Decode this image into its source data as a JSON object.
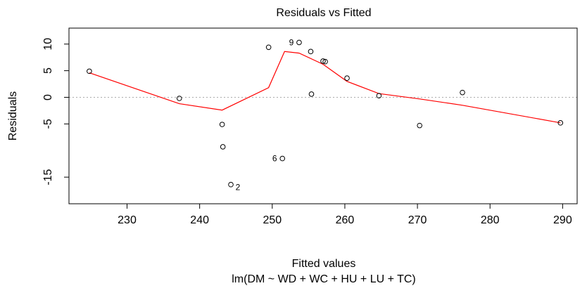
{
  "chart_data": {
    "type": "scatter",
    "title": "Residuals vs Fitted",
    "xlabel": "Fitted values",
    "ylabel": "Residuals",
    "subtitle": "lm(DM ~ WD + WC + HU + LU + TC)",
    "xlim": [
      222,
      292
    ],
    "ylim": [
      -20,
      13
    ],
    "xticks": [
      230,
      240,
      250,
      260,
      270,
      280,
      290
    ],
    "yticks": [
      10,
      5,
      0,
      -5,
      -15
    ],
    "grid": false,
    "reference_line": {
      "y": 0,
      "style": "dotted",
      "color": "#aaaaaa"
    },
    "points": [
      {
        "x": 224.8,
        "y": 4.9
      },
      {
        "x": 237.2,
        "y": -0.2
      },
      {
        "x": 243.1,
        "y": -5.1
      },
      {
        "x": 243.2,
        "y": -9.3
      },
      {
        "x": 244.3,
        "y": -16.4,
        "label": "2"
      },
      {
        "x": 249.5,
        "y": 9.4
      },
      {
        "x": 251.4,
        "y": -11.5,
        "label": "6"
      },
      {
        "x": 253.7,
        "y": 10.3,
        "label": "9"
      },
      {
        "x": 255.3,
        "y": 8.6
      },
      {
        "x": 255.4,
        "y": 0.6
      },
      {
        "x": 257.0,
        "y": 6.8
      },
      {
        "x": 257.3,
        "y": 6.7
      },
      {
        "x": 260.3,
        "y": 3.6
      },
      {
        "x": 264.7,
        "y": 0.3
      },
      {
        "x": 270.3,
        "y": -5.3
      },
      {
        "x": 276.2,
        "y": 0.9
      },
      {
        "x": 289.7,
        "y": -4.8
      }
    ],
    "smooth_line": {
      "color": "#ff0000",
      "x": [
        224.8,
        237.2,
        243.1,
        249.5,
        251.7,
        253.7,
        257.0,
        260.3,
        264.7,
        270.3,
        276.2,
        289.7
      ],
      "y": [
        4.6,
        -1.2,
        -2.4,
        1.8,
        8.6,
        8.3,
        6.2,
        3.0,
        0.7,
        -0.3,
        -1.5,
        -4.8
      ]
    }
  }
}
